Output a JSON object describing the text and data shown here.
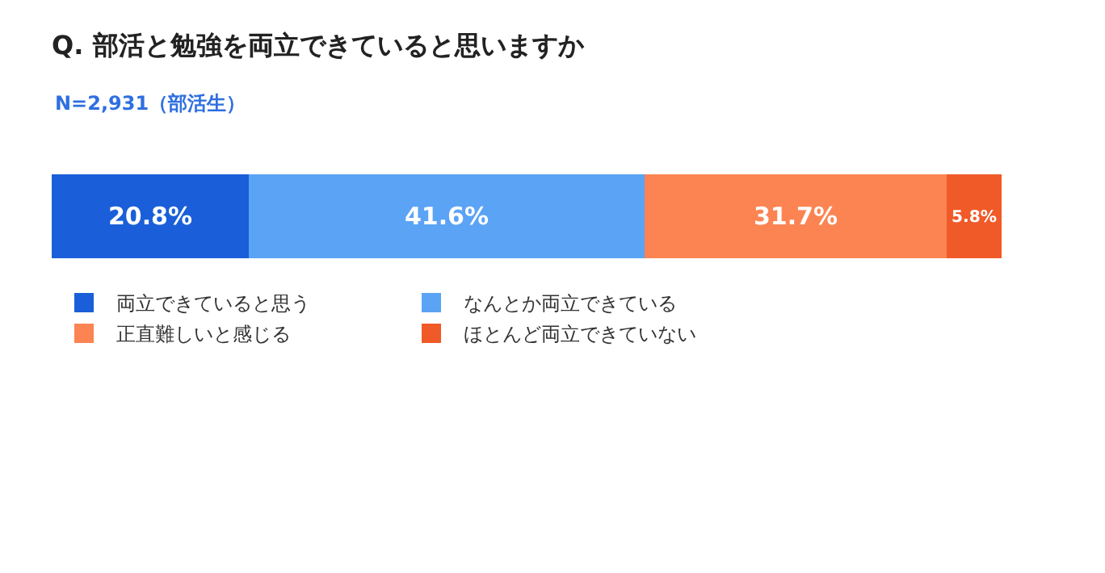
{
  "chart_data": {
    "type": "bar",
    "orientation": "horizontal",
    "stacked": true,
    "title": "Q. 部活と勉強を両立できていると思いますか",
    "subtitle": "N=2,931（部活生）",
    "categories": [
      null
    ],
    "tick_labels": false,
    "legend": "bottom",
    "series": [
      {
        "name": "両立できていると思う",
        "color": "#1a5fd9",
        "values": [
          20.8
        ],
        "value_labels": [
          "20.8%"
        ]
      },
      {
        "name": "なんとか両立できている",
        "color": "#5ba3f5",
        "values": [
          41.6
        ],
        "value_labels": [
          "41.6%"
        ]
      },
      {
        "name": "正直難しいと感じる",
        "color": "#fc8452",
        "values": [
          31.7
        ],
        "value_labels": [
          "31.7%"
        ]
      },
      {
        "name": "ほとんど両立できていない",
        "color": "#f05a28",
        "values": [
          5.8
        ],
        "value_labels": [
          "5.8%"
        ]
      }
    ]
  }
}
